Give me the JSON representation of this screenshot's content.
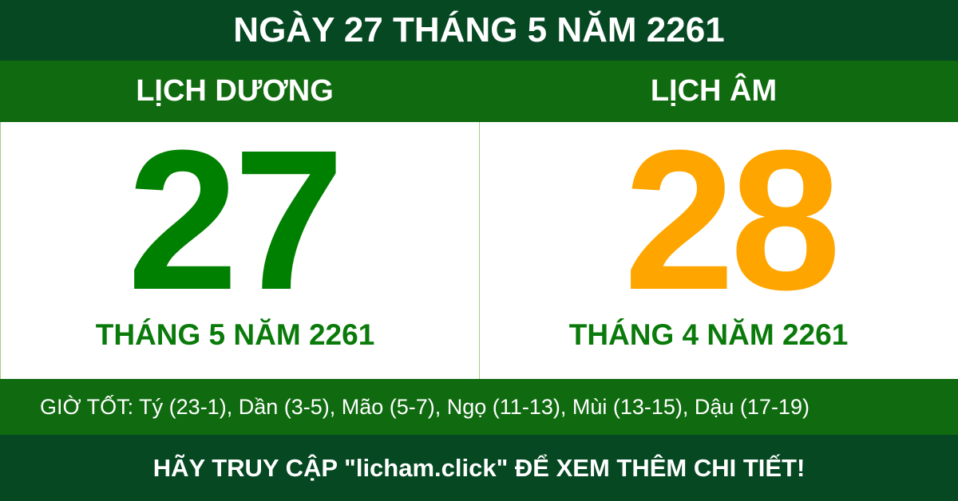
{
  "title": "NGÀY 27 THÁNG 5 NĂM 2261",
  "solar": {
    "label": "LỊCH DƯƠNG",
    "day": "27",
    "month_year": "THÁNG 5 NĂM 2261"
  },
  "lunar": {
    "label": "LỊCH ÂM",
    "day": "28",
    "month_year": "THÁNG 4 NĂM 2261"
  },
  "good_hours": "GIỜ TỐT: Tý (23-1), Dần (3-5), Mão (5-7), Ngọ (11-13), Mùi (13-15), Dậu (17-19)",
  "footer": "HÃY TRUY CẬP \"licham.click\" ĐỂ XEM THÊM CHI TIẾT!",
  "colors": {
    "dark_green": "#054822",
    "green": "#106b10",
    "solar_day": "#008000",
    "lunar_day": "#ffa500"
  }
}
